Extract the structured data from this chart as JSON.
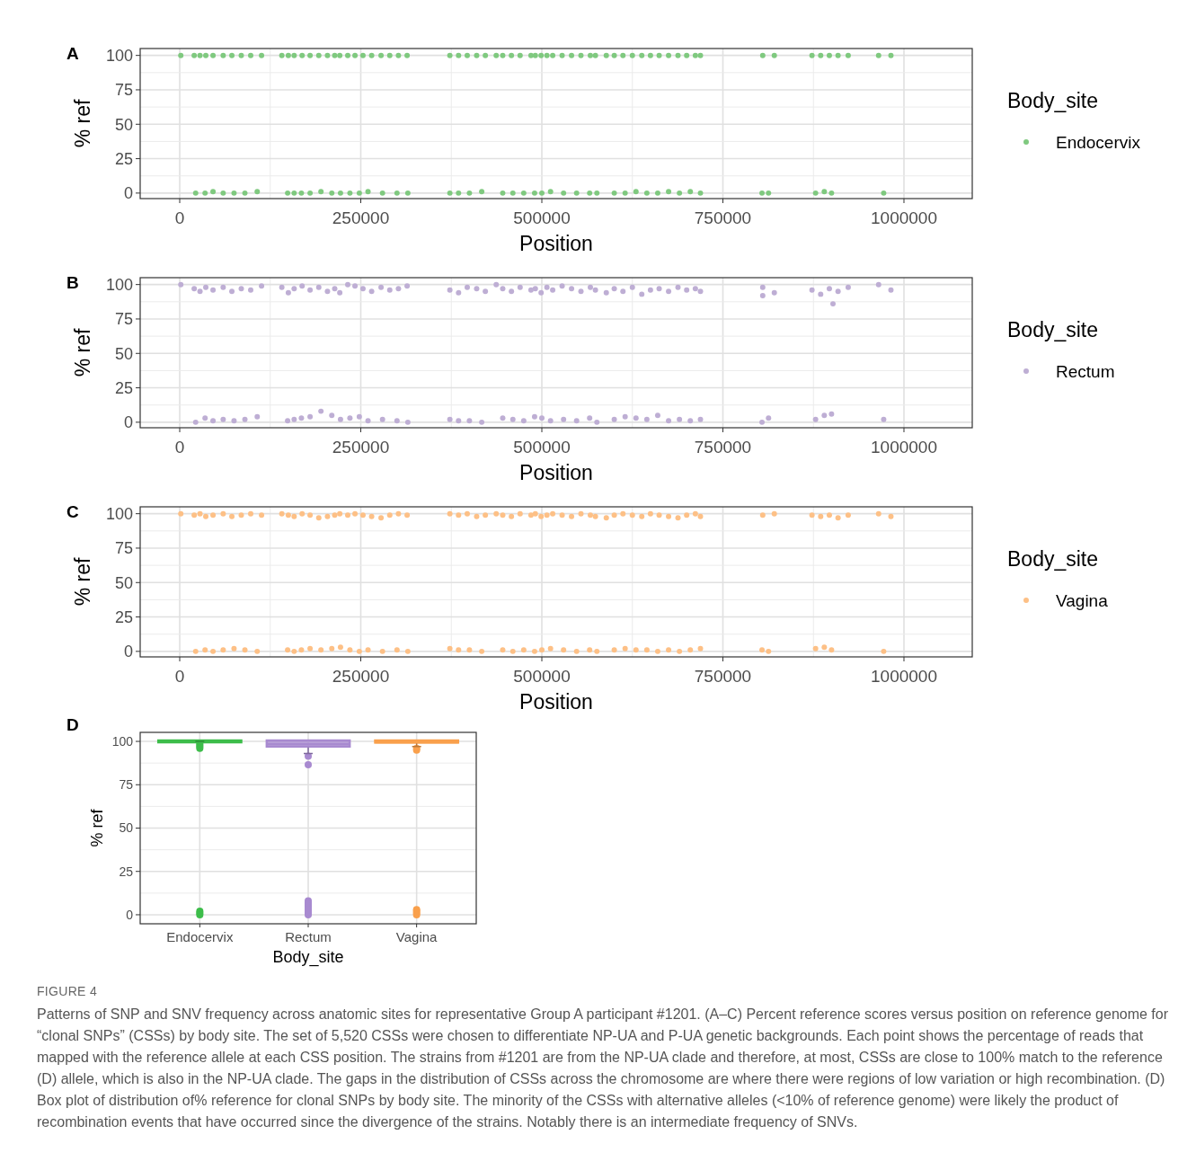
{
  "chart_data": [
    {
      "type": "scatter",
      "title": "A",
      "xlabel": "Position",
      "ylabel": "% ref",
      "legend_title": "Body_site",
      "legend": "right",
      "marker": "circle",
      "grid": true,
      "xlim": [
        -54600,
        1094300
      ],
      "ylim": [
        -4,
        105
      ],
      "xticks": [
        0,
        250000,
        500000,
        750000,
        1000000
      ],
      "yticks": [
        0,
        25,
        50,
        75,
        100
      ],
      "x": [
        1500,
        20000,
        28000,
        36000,
        46000,
        60000,
        72000,
        85000,
        98000,
        113000,
        141000,
        150000,
        158000,
        169000,
        180000,
        192000,
        204000,
        214000,
        221000,
        232000,
        242000,
        253000,
        265000,
        278000,
        290000,
        302000,
        314000,
        373000,
        385000,
        397000,
        410000,
        422000,
        437000,
        446000,
        458000,
        470000,
        485000,
        491000,
        499000,
        507000,
        515000,
        528000,
        541000,
        554000,
        567000,
        574000,
        589000,
        600000,
        612000,
        625000,
        638000,
        650000,
        662000,
        675000,
        688000,
        700000,
        712000,
        719000,
        805000,
        821000,
        873000,
        885000,
        897000,
        909000,
        923000,
        965000,
        982000,
        22000,
        35000,
        46000,
        60000,
        75000,
        90000,
        107000,
        149000,
        158000,
        168000,
        180000,
        195000,
        210000,
        222000,
        235000,
        248000,
        260000,
        280000,
        300000,
        315000,
        373000,
        385000,
        400000,
        417000,
        446000,
        460000,
        475000,
        490000,
        500000,
        512000,
        530000,
        548000,
        566000,
        576000,
        600000,
        615000,
        630000,
        645000,
        660000,
        675000,
        690000,
        705000,
        719000,
        804000,
        813000,
        878000,
        890000,
        900000,
        972000
      ],
      "series": [
        {
          "name": "Endocervix",
          "color": "#7fc97f",
          "values": [
            100,
            100,
            100,
            100,
            100,
            100,
            100,
            100,
            100,
            100,
            100,
            100,
            100,
            100,
            100,
            100,
            100,
            100,
            100,
            100,
            100,
            100,
            100,
            100,
            100,
            100,
            100,
            100,
            100,
            100,
            100,
            100,
            100,
            100,
            100,
            100,
            100,
            100,
            100,
            100,
            100,
            100,
            100,
            100,
            100,
            100,
            100,
            100,
            100,
            100,
            100,
            100,
            100,
            100,
            100,
            100,
            100,
            100,
            100,
            100,
            100,
            100,
            100,
            100,
            100,
            100,
            100,
            0,
            0,
            1,
            0,
            0,
            0,
            1,
            0,
            0,
            0,
            0,
            1,
            0,
            0,
            0,
            0,
            1,
            0,
            0,
            0,
            0,
            0,
            0,
            1,
            0,
            0,
            0,
            0,
            0,
            1,
            0,
            0,
            0,
            0,
            0,
            0,
            1,
            0,
            0,
            1,
            0,
            1,
            0,
            0,
            0,
            0,
            1,
            0,
            0
          ]
        }
      ]
    },
    {
      "type": "scatter",
      "title": "B",
      "xlabel": "Position",
      "ylabel": "% ref",
      "legend_title": "Body_site",
      "legend": "right",
      "marker": "circle",
      "grid": true,
      "xlim": [
        -54600,
        1094300
      ],
      "ylim": [
        -4,
        105
      ],
      "xticks": [
        0,
        250000,
        500000,
        750000,
        1000000
      ],
      "yticks": [
        0,
        25,
        50,
        75,
        100
      ],
      "x": [
        1500,
        20000,
        28000,
        36000,
        46000,
        60000,
        72000,
        85000,
        98000,
        113000,
        141000,
        150000,
        158000,
        169000,
        180000,
        192000,
        204000,
        214000,
        221000,
        232000,
        242000,
        253000,
        265000,
        278000,
        290000,
        302000,
        314000,
        373000,
        385000,
        397000,
        410000,
        422000,
        437000,
        446000,
        458000,
        470000,
        485000,
        491000,
        499000,
        507000,
        515000,
        528000,
        541000,
        554000,
        567000,
        574000,
        589000,
        600000,
        612000,
        625000,
        638000,
        650000,
        662000,
        675000,
        688000,
        700000,
        712000,
        719000,
        805000,
        821000,
        873000,
        885000,
        897000,
        909000,
        923000,
        965000,
        982000,
        22000,
        35000,
        46000,
        60000,
        75000,
        90000,
        107000,
        149000,
        158000,
        168000,
        180000,
        195000,
        210000,
        222000,
        235000,
        248000,
        260000,
        280000,
        300000,
        315000,
        373000,
        385000,
        400000,
        417000,
        446000,
        460000,
        475000,
        490000,
        500000,
        512000,
        530000,
        548000,
        566000,
        576000,
        600000,
        615000,
        630000,
        645000,
        660000,
        675000,
        690000,
        705000,
        719000,
        804000,
        813000,
        878000,
        890000,
        900000,
        972000,
        805000,
        902000
      ],
      "series": [
        {
          "name": "Rectum",
          "color": "#beaed4",
          "values": [
            100,
            97,
            95,
            98,
            96,
            98,
            95,
            97,
            96,
            99,
            98,
            94,
            97,
            99,
            96,
            98,
            95,
            97,
            94,
            100,
            99,
            97,
            95,
            98,
            96,
            97,
            99,
            96,
            94,
            98,
            97,
            95,
            100,
            97,
            95,
            98,
            96,
            97,
            94,
            98,
            96,
            99,
            97,
            95,
            98,
            96,
            94,
            97,
            95,
            98,
            93,
            96,
            97,
            95,
            98,
            96,
            97,
            95,
            98,
            94,
            96,
            93,
            97,
            95,
            98,
            100,
            96,
            0,
            3,
            1,
            2,
            1,
            2,
            4,
            1,
            2,
            3,
            4,
            8,
            5,
            2,
            3,
            4,
            1,
            2,
            1,
            0,
            2,
            1,
            1,
            0,
            3,
            2,
            1,
            4,
            3,
            1,
            2,
            1,
            3,
            0,
            2,
            4,
            3,
            2,
            5,
            1,
            2,
            1,
            2,
            0,
            3,
            2,
            5,
            6,
            2,
            92,
            86
          ]
        }
      ]
    },
    {
      "type": "scatter",
      "title": "C",
      "xlabel": "Position",
      "ylabel": "% ref",
      "legend_title": "Body_site",
      "legend": "right",
      "marker": "circle",
      "grid": true,
      "xlim": [
        -54600,
        1094300
      ],
      "ylim": [
        -4,
        105
      ],
      "xticks": [
        0,
        250000,
        500000,
        750000,
        1000000
      ],
      "yticks": [
        0,
        25,
        50,
        75,
        100
      ],
      "x": [
        1500,
        20000,
        28000,
        36000,
        46000,
        60000,
        72000,
        85000,
        98000,
        113000,
        141000,
        150000,
        158000,
        169000,
        180000,
        192000,
        204000,
        214000,
        221000,
        232000,
        242000,
        253000,
        265000,
        278000,
        290000,
        302000,
        314000,
        373000,
        385000,
        397000,
        410000,
        422000,
        437000,
        446000,
        458000,
        470000,
        485000,
        491000,
        499000,
        507000,
        515000,
        528000,
        541000,
        554000,
        567000,
        574000,
        589000,
        600000,
        612000,
        625000,
        638000,
        650000,
        662000,
        675000,
        688000,
        700000,
        712000,
        719000,
        805000,
        821000,
        873000,
        885000,
        897000,
        909000,
        923000,
        965000,
        982000,
        22000,
        35000,
        46000,
        60000,
        75000,
        90000,
        107000,
        149000,
        158000,
        168000,
        180000,
        195000,
        210000,
        222000,
        235000,
        248000,
        260000,
        280000,
        300000,
        315000,
        373000,
        385000,
        400000,
        417000,
        446000,
        460000,
        475000,
        490000,
        500000,
        512000,
        530000,
        548000,
        566000,
        576000,
        600000,
        615000,
        630000,
        645000,
        660000,
        675000,
        690000,
        705000,
        719000,
        804000,
        813000,
        878000,
        890000,
        900000,
        972000
      ],
      "series": [
        {
          "name": "Vagina",
          "color": "#fdc086",
          "values": [
            100,
            99,
            100,
            98,
            99,
            100,
            98,
            99,
            100,
            99,
            100,
            99,
            98,
            100,
            99,
            97,
            98,
            99,
            100,
            99,
            100,
            99,
            98,
            97,
            99,
            100,
            99,
            100,
            99,
            100,
            98,
            99,
            100,
            99,
            98,
            100,
            99,
            100,
            98,
            99,
            100,
            99,
            98,
            100,
            99,
            98,
            97,
            99,
            100,
            99,
            98,
            100,
            99,
            98,
            97,
            99,
            100,
            98,
            99,
            100,
            99,
            98,
            99,
            97,
            99,
            100,
            98,
            0,
            1,
            0,
            1,
            2,
            1,
            0,
            1,
            0,
            1,
            2,
            1,
            2,
            3,
            1,
            0,
            1,
            0,
            1,
            0,
            2,
            1,
            1,
            0,
            1,
            0,
            1,
            0,
            1,
            2,
            1,
            0,
            1,
            0,
            1,
            2,
            1,
            1,
            0,
            1,
            0,
            1,
            2,
            1,
            0,
            2,
            3,
            1,
            0
          ]
        }
      ]
    },
    {
      "type": "box",
      "title": "D",
      "xlabel": "Body_site",
      "ylabel": "% ref",
      "grid": true,
      "ylim": [
        -5.2,
        105.2
      ],
      "yticks": [
        0,
        25,
        50,
        75,
        100
      ],
      "categories": [
        "Endocervix",
        "Rectum",
        "Vagina"
      ],
      "colors": [
        "#3dbd4a",
        "#a88ad0",
        "#f9a04c"
      ],
      "boxes": [
        {
          "low": 100,
          "q1": 100,
          "median": 100,
          "q3": 100,
          "high": 100,
          "outliers": [
            99,
            98,
            97,
            96,
            2,
            1,
            0
          ]
        },
        {
          "low": 93,
          "q1": 96.5,
          "median": 98.5,
          "q3": 100,
          "high": 100,
          "outliers": [
            91.5,
            86.5,
            8,
            7,
            6,
            5,
            4,
            3,
            2,
            1,
            0
          ]
        },
        {
          "low": 97,
          "q1": 98.8,
          "median": 99.5,
          "q3": 100,
          "high": 100,
          "outliers": [
            96,
            95,
            3,
            2,
            1,
            0
          ]
        }
      ],
      "annotations": [
        "FIGURE 4",
        "Patterns of SNP and SNV frequency across anatomic sites for representative Group A participant #1201. (A–C) Percent reference scores versus position on reference genome for “clonal SNPs” (CSSs) by body site. The set of 5,520 CSSs were chosen to differentiate NP-UA and P-UA genetic backgrounds. Each point shows the percentage of reads that mapped with the reference allele at each CSS position. The strains from #1201 are from the NP-UA clade and therefore, at most, CSSs are close to 100% match to the reference (D) allele, which is also in the NP-UA clade. The gaps in the distribution of CSSs across the chromosome are where there were regions of low variation or high recombination. (D) Box plot of distribution of% reference for clonal SNPs by body site. The minority of the CSSs with alternative alleles (<10% of reference genome) were likely the product of recombination events that have occurred since the divergence of the strains. Notably there is an intermediate frequency of SNVs."
      ]
    }
  ]
}
